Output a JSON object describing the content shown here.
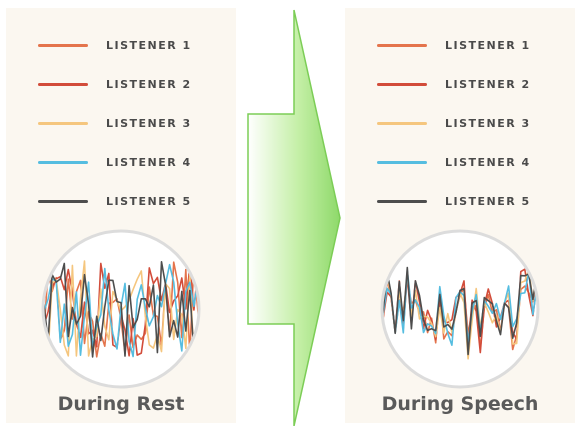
{
  "left_panel": {
    "caption": "During Rest",
    "legend": [
      {
        "label": "LISTENER 1",
        "color": "#e4744c"
      },
      {
        "label": "LISTENER 2",
        "color": "#d24c3a"
      },
      {
        "label": "LISTENER 3",
        "color": "#f5c67e"
      },
      {
        "label": "LISTENER 4",
        "color": "#55bde0"
      },
      {
        "label": "LISTENER 5",
        "color": "#4d4d4d"
      }
    ]
  },
  "right_panel": {
    "caption": "During Speech",
    "legend": [
      {
        "label": "LISTENER 1",
        "color": "#e4744c"
      },
      {
        "label": "LISTENER 2",
        "color": "#d24c3a"
      },
      {
        "label": "LISTENER 3",
        "color": "#f5c67e"
      },
      {
        "label": "LISTENER 4",
        "color": "#55bde0"
      },
      {
        "label": "LISTENER 5",
        "color": "#4d4d4d"
      }
    ]
  },
  "arrow_color": "#8ed96a"
}
